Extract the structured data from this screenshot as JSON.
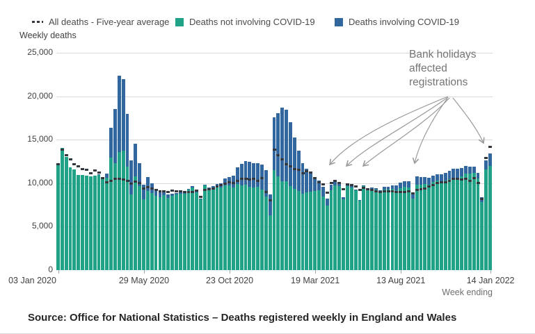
{
  "legend": {
    "avg_label": "All deaths - Five-year average",
    "green_label": "Deaths not involving COVID-19",
    "blue_label": "Deaths involving COVID-19"
  },
  "axis": {
    "y_title": "Weekly deaths",
    "x_title": "Week ending",
    "y_ticks": [
      "25,000",
      "20,000",
      "15,000",
      "10,000",
      "5,000",
      "0"
    ],
    "x_ticks": [
      "03 Jan 2020",
      "29 May 2020",
      "23 Oct 2020",
      "19 Mar 2021",
      "13 Aug 2021",
      "14 Jan 2022"
    ]
  },
  "annotation": {
    "text": "Bank holidays affected registrations"
  },
  "source": "Source: Office for National Statistics – Deaths registered weekly in England and Wales",
  "colors": {
    "green": "#1fa287",
    "blue": "#31669e",
    "avg_dash": "#33383e",
    "grid": "#d9d9d9",
    "annotation_text": "#757575",
    "arrow": "#9a9a9a"
  },
  "chart_data": {
    "type": "bar",
    "subtype": "stacked-bars-with-dashed-average-markers",
    "title": "Weekly deaths",
    "ylabel": "Weekly deaths",
    "xlabel": "Week ending",
    "ylim": [
      0,
      25000
    ],
    "grid": "horizontal",
    "legend_position": "top",
    "y_tick_values": [
      25000,
      20000,
      15000,
      10000,
      5000,
      0
    ],
    "x_tick_indices": [
      0,
      21,
      42,
      63,
      84,
      106
    ],
    "x": [
      "03 Jan 2020",
      "10 Jan 2020",
      "17 Jan 2020",
      "24 Jan 2020",
      "31 Jan 2020",
      "07 Feb 2020",
      "14 Feb 2020",
      "21 Feb 2020",
      "28 Feb 2020",
      "06 Mar 2020",
      "13 Mar 2020",
      "20 Mar 2020",
      "27 Mar 2020",
      "03 Apr 2020",
      "10 Apr 2020",
      "17 Apr 2020",
      "24 Apr 2020",
      "01 May 2020",
      "08 May 2020",
      "15 May 2020",
      "22 May 2020",
      "29 May 2020",
      "05 Jun 2020",
      "12 Jun 2020",
      "19 Jun 2020",
      "26 Jun 2020",
      "03 Jul 2020",
      "10 Jul 2020",
      "17 Jul 2020",
      "24 Jul 2020",
      "31 Jul 2020",
      "07 Aug 2020",
      "14 Aug 2020",
      "21 Aug 2020",
      "28 Aug 2020",
      "04 Sep 2020",
      "11 Sep 2020",
      "18 Sep 2020",
      "25 Sep 2020",
      "02 Oct 2020",
      "09 Oct 2020",
      "16 Oct 2020",
      "23 Oct 2020",
      "30 Oct 2020",
      "06 Nov 2020",
      "13 Nov 2020",
      "20 Nov 2020",
      "27 Nov 2020",
      "04 Dec 2020",
      "11 Dec 2020",
      "18 Dec 2020",
      "25 Dec 2020",
      "01 Jan 2021",
      "08 Jan 2021",
      "15 Jan 2021",
      "22 Jan 2021",
      "29 Jan 2021",
      "05 Feb 2021",
      "12 Feb 2021",
      "19 Feb 2021",
      "26 Feb 2021",
      "05 Mar 2021",
      "12 Mar 2021",
      "19 Mar 2021",
      "26 Mar 2021",
      "02 Apr 2021",
      "09 Apr 2021",
      "16 Apr 2021",
      "23 Apr 2021",
      "30 Apr 2021",
      "07 May 2021",
      "14 May 2021",
      "21 May 2021",
      "28 May 2021",
      "04 Jun 2021",
      "11 Jun 2021",
      "18 Jun 2021",
      "25 Jun 2021",
      "02 Jul 2021",
      "09 Jul 2021",
      "16 Jul 2021",
      "23 Jul 2021",
      "30 Jul 2021",
      "06 Aug 2021",
      "13 Aug 2021",
      "20 Aug 2021",
      "27 Aug 2021",
      "03 Sep 2021",
      "10 Sep 2021",
      "17 Sep 2021",
      "24 Sep 2021",
      "01 Oct 2021",
      "08 Oct 2021",
      "15 Oct 2021",
      "22 Oct 2021",
      "29 Oct 2021",
      "05 Nov 2021",
      "12 Nov 2021",
      "19 Nov 2021",
      "26 Nov 2021",
      "03 Dec 2021",
      "10 Dec 2021",
      "17 Dec 2021",
      "24 Dec 2021",
      "31 Dec 2021",
      "07 Jan 2022",
      "14 Jan 2022"
    ],
    "series": [
      {
        "name": "Deaths not involving COVID-19",
        "values": [
          12254,
          14058,
          12990,
          11856,
          11612,
          10986,
          10944,
          10841,
          10816,
          10894,
          11014,
          10542,
          10602,
          12912,
          12303,
          13593,
          13760,
          11918,
          8727,
          10763,
          9699,
          8171,
          9121,
          8862,
          8556,
          8373,
          8608,
          8324,
          8528,
          8674,
          8753,
          8793,
          9253,
          9493,
          8931,
          8122,
          9712,
          9384,
          9419,
          9624,
          9516,
          9773,
          9761,
          9508,
          9875,
          9788,
          9838,
          9628,
          9536,
          9562,
          9259,
          8499,
          6280,
          11543,
          10797,
          10254,
          10206,
          9680,
          9370,
          9140,
          8810,
          8950,
          9000,
          9100,
          9210,
          8491,
          7400,
          9150,
          9770,
          9630,
          8150,
          9640,
          9520,
          9160,
          8000,
          9657,
          9316,
          9341,
          9286,
          8986,
          9301,
          9231,
          9310,
          9152,
          9419,
          9566,
          9475,
          8231,
          9857,
          9790,
          9871,
          9813,
          10115,
          10289,
          10223,
          10304,
          10433,
          10634,
          10664,
          10790,
          11087,
          11103,
          11152,
          10538,
          7853,
          11557,
          11967
        ]
      },
      {
        "name": "Deaths involving COVID-19",
        "values": [
          0,
          0,
          0,
          0,
          0,
          0,
          0,
          0,
          0,
          1,
          5,
          103,
          539,
          3475,
          6213,
          8758,
          8237,
          6035,
          3930,
          3810,
          2589,
          1653,
          1588,
          1114,
          783,
          606,
          532,
          366,
          295,
          217,
          193,
          152,
          139,
          138,
          101,
          78,
          99,
          139,
          215,
          321,
          438,
          761,
          978,
          1379,
          1937,
          2466,
          2697,
          2828,
          2756,
          2731,
          2912,
          3021,
          2400,
          6057,
          7245,
          8422,
          8242,
          7320,
          5900,
          4610,
          3490,
          2700,
          2100,
          1500,
          1101,
          1086,
          800,
          650,
          480,
          370,
          260,
          185,
          145,
          115,
          105,
          113,
          128,
          149,
          165,
          227,
          284,
          389,
          468,
          571,
          623,
          689,
          770,
          600,
          915,
          886,
          863,
          812,
          758,
          767,
          776,
          862,
          995,
          1045,
          1030,
          976,
          916,
          809,
          745,
          672,
          540,
          1086,
          1484
        ]
      },
      {
        "name": "All deaths - Five-year average",
        "values": [
          12175,
          13822,
          13216,
          12760,
          12206,
          11925,
          11627,
          11548,
          11183,
          11498,
          11205,
          10573,
          10130,
          10305,
          10520,
          10497,
          10458,
          10305,
          9941,
          10188,
          10013,
          9395,
          9530,
          9381,
          9256,
          9089,
          9090,
          8990,
          9111,
          9084,
          9080,
          8999,
          9005,
          9025,
          9119,
          8400,
          9202,
          9329,
          9392,
          9609,
          9811,
          9954,
          10100,
          10067,
          10260,
          10543,
          10479,
          10395,
          10485,
          10278,
          10607,
          9000,
          8000,
          13822,
          13216,
          12760,
          12206,
          11925,
          11627,
          11548,
          11183,
          11400,
          11205,
          10573,
          10130,
          9900,
          8900,
          10050,
          10300,
          10000,
          9300,
          9900,
          9800,
          9600,
          9200,
          9500,
          9300,
          9200,
          9100,
          9000,
          9100,
          9100,
          9100,
          9000,
          9000,
          9000,
          9100,
          8800,
          9200,
          9300,
          9400,
          9600,
          9800,
          10000,
          10100,
          10100,
          10300,
          10500,
          10500,
          10400,
          10500,
          10300,
          10600,
          10000,
          8200,
          12900,
          14150
        ]
      }
    ]
  }
}
